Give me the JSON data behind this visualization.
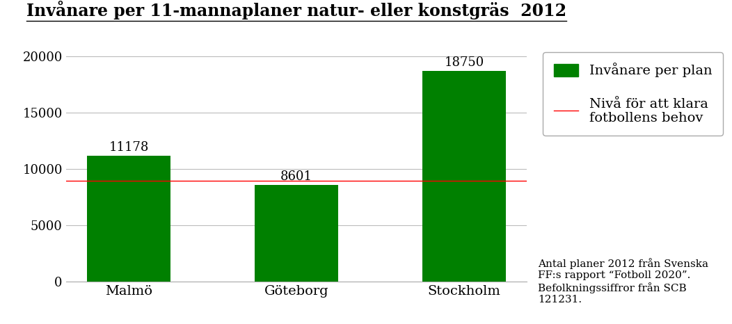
{
  "title": "Invånare per 11-mannaplaner natur- eller konstgräs  2012",
  "categories": [
    "Malmö",
    "Göteborg",
    "Stockholm"
  ],
  "values": [
    11178,
    8601,
    18750
  ],
  "bar_color": "#008000",
  "reference_line_value": 9000,
  "reference_line_color": "#ff0000",
  "ylim": [
    0,
    21000
  ],
  "yticks": [
    0,
    5000,
    10000,
    15000,
    20000
  ],
  "legend_bar_label": "Invånare per plan",
  "legend_line_label": "Nivå för att klara\nfotbollens behov",
  "footnote": "Antal planer 2012 från Svenska\nFF:s rapport “Fotboll 2020”.\nBefolkningssiffror från SCB\n121231.",
  "title_fontsize": 17,
  "tick_fontsize": 13,
  "legend_fontsize": 14,
  "footnote_fontsize": 11,
  "bar_label_fontsize": 13,
  "title_color": "#000000",
  "text_color": "#000000",
  "background_color": "#ffffff",
  "grid_color": "#bbbbbb"
}
